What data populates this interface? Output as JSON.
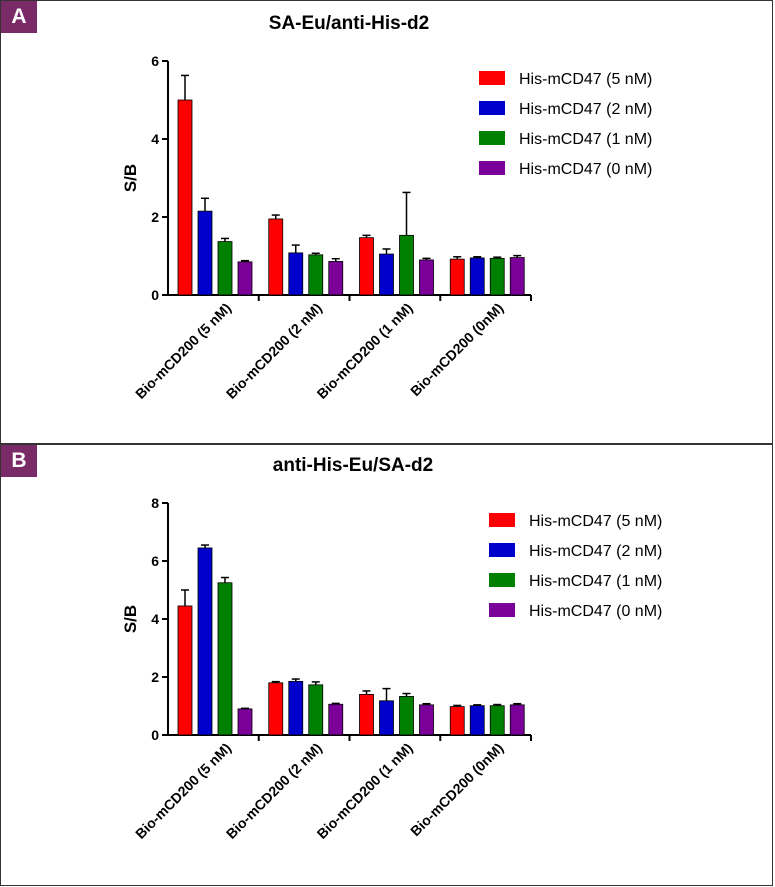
{
  "panels": [
    {
      "label": "A",
      "title": "SA-Eu/anti-His-d2"
    },
    {
      "label": "B",
      "title": "anti-His-Eu/SA-d2"
    }
  ],
  "chart_data": [
    {
      "type": "bar",
      "panel": "A",
      "title": "SA-Eu/anti-His-d2",
      "xlabel": "",
      "ylabel": "S/B",
      "ylim": [
        0,
        6
      ],
      "yticks": [
        "0",
        "2",
        "4",
        "6"
      ],
      "categories": [
        "Bio-mCD200 (5 nM)",
        "Bio-mCD200 (2 nM)",
        "Bio-mCD200 (1 nM)",
        "Bio-mCD200 (0nM)"
      ],
      "legend_position": "top-right",
      "series": [
        {
          "name": "His-mCD47 (5 nM)",
          "color": "#ff0000",
          "values": [
            5.0,
            1.95,
            1.47,
            0.92
          ],
          "errors": [
            0.63,
            0.1,
            0.06,
            0.06
          ]
        },
        {
          "name": "His-mCD47 (2 nM)",
          "color": "#0000cc",
          "values": [
            2.15,
            1.08,
            1.05,
            0.95
          ],
          "errors": [
            0.33,
            0.2,
            0.13,
            0.03
          ]
        },
        {
          "name": "His-mCD47 (1 nM)",
          "color": "#008000",
          "values": [
            1.37,
            1.03,
            1.53,
            0.94
          ],
          "errors": [
            0.08,
            0.04,
            1.1,
            0.03
          ]
        },
        {
          "name": "His-mCD47 (0 nM)",
          "color": "#7a0099",
          "values": [
            0.85,
            0.86,
            0.9,
            0.96
          ],
          "errors": [
            0.03,
            0.07,
            0.04,
            0.05
          ]
        }
      ]
    },
    {
      "type": "bar",
      "panel": "B",
      "title": "anti-His-Eu/SA-d2",
      "xlabel": "",
      "ylabel": "S/B",
      "ylim": [
        0,
        8
      ],
      "yticks": [
        "0",
        "2",
        "4",
        "6",
        "8"
      ],
      "categories": [
        "Bio-mCD200 (5 nM)",
        "Bio-mCD200 (2 nM)",
        "Bio-mCD200 (1 nM)",
        "Bio-mCD200 (0nM)"
      ],
      "legend_position": "top-right",
      "series": [
        {
          "name": "His-mCD47 (5 nM)",
          "color": "#ff0000",
          "values": [
            4.45,
            1.8,
            1.4,
            0.98
          ],
          "errors": [
            0.55,
            0.04,
            0.12,
            0.04
          ]
        },
        {
          "name": "His-mCD47 (2 nM)",
          "color": "#0000cc",
          "values": [
            6.45,
            1.85,
            1.18,
            1.01
          ],
          "errors": [
            0.1,
            0.08,
            0.42,
            0.03
          ]
        },
        {
          "name": "His-mCD47 (1 nM)",
          "color": "#008000",
          "values": [
            5.25,
            1.73,
            1.33,
            1.01
          ],
          "errors": [
            0.18,
            0.1,
            0.1,
            0.04
          ]
        },
        {
          "name": "His-mCD47 (0 nM)",
          "color": "#7a0099",
          "values": [
            0.9,
            1.06,
            1.04,
            1.04
          ],
          "errors": [
            0.02,
            0.03,
            0.04,
            0.04
          ]
        }
      ]
    }
  ]
}
